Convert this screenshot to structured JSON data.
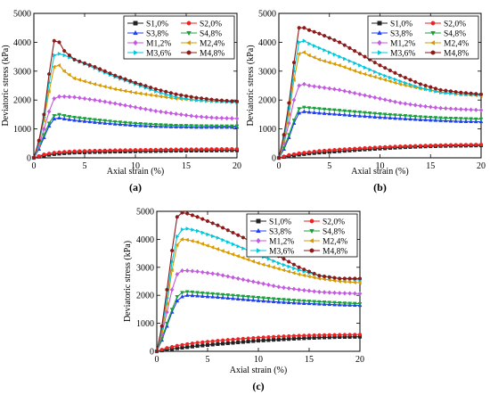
{
  "figure": {
    "colors": {
      "S1": "#222222",
      "S2": "#ee2222",
      "S3": "#1f3ff0",
      "S4": "#18a03a",
      "M1": "#c45ae0",
      "M2": "#d79a00",
      "M3": "#00c8dc",
      "M4": "#8b1a1a"
    },
    "markers": {
      "S1": "square",
      "S2": "circle",
      "S3": "triangle-up",
      "S4": "triangle-down",
      "M1": "diamond",
      "M2": "triangle-left",
      "M3": "triangle-right",
      "M4": "hexagon"
    }
  },
  "chart_data": [
    {
      "type": "line",
      "panel_label": "(a)",
      "xlabel": "Axial strain (%)",
      "ylabel": "Deviatoric stress (kPa)",
      "xlim": [
        0,
        20
      ],
      "ylim": [
        0,
        5000
      ],
      "xticks": [
        "0",
        "5",
        "10",
        "15",
        "20"
      ],
      "yticks": [
        "0",
        "1000",
        "2000",
        "3000",
        "4000",
        "5000"
      ],
      "legend_position": "top-right",
      "series": [
        {
          "name": "S1,0%",
          "key": "S1",
          "x": [
            0,
            1,
            2,
            3,
            4,
            6,
            8,
            10,
            12,
            14,
            16,
            18,
            20
          ],
          "y": [
            0,
            80,
            130,
            160,
            180,
            200,
            215,
            225,
            235,
            245,
            250,
            255,
            260
          ]
        },
        {
          "name": "S2,0%",
          "key": "S2",
          "x": [
            0,
            1,
            2,
            3,
            4,
            6,
            8,
            10,
            12,
            14,
            16,
            18,
            20
          ],
          "y": [
            0,
            120,
            180,
            210,
            230,
            250,
            265,
            275,
            285,
            295,
            300,
            305,
            310
          ]
        },
        {
          "name": "S3,8%",
          "key": "S3",
          "x": [
            0,
            0.5,
            1,
            1.5,
            2,
            2.5,
            3,
            4,
            6,
            8,
            10,
            12,
            14,
            16,
            18,
            20
          ],
          "y": [
            0,
            300,
            700,
            1100,
            1350,
            1380,
            1350,
            1300,
            1230,
            1170,
            1120,
            1090,
            1070,
            1060,
            1060,
            1060
          ]
        },
        {
          "name": "S4,8%",
          "key": "S4",
          "x": [
            0,
            0.5,
            1,
            1.5,
            2,
            2.5,
            3,
            4,
            6,
            8,
            10,
            12,
            14,
            16,
            18,
            20
          ],
          "y": [
            0,
            350,
            800,
            1200,
            1460,
            1500,
            1460,
            1400,
            1320,
            1250,
            1190,
            1150,
            1120,
            1110,
            1100,
            1100
          ]
        },
        {
          "name": "M1,2%",
          "key": "M1",
          "x": [
            0,
            0.5,
            1,
            1.5,
            2,
            2.5,
            3,
            4,
            6,
            8,
            10,
            12,
            14,
            16,
            18,
            20
          ],
          "y": [
            0,
            400,
            1000,
            1600,
            2050,
            2120,
            2120,
            2100,
            2000,
            1880,
            1750,
            1620,
            1520,
            1430,
            1380,
            1360
          ]
        },
        {
          "name": "M2,4%",
          "key": "M2",
          "x": [
            0,
            0.5,
            1,
            1.5,
            2,
            2.5,
            3,
            4,
            6,
            8,
            10,
            12,
            14,
            16,
            18,
            20
          ],
          "y": [
            0,
            500,
            1300,
            2300,
            3150,
            3200,
            3000,
            2750,
            2550,
            2380,
            2250,
            2150,
            2050,
            2000,
            1960,
            1940
          ]
        },
        {
          "name": "M3,6%",
          "key": "M3",
          "x": [
            0,
            0.5,
            1,
            1.5,
            2,
            2.5,
            3,
            4,
            6,
            8,
            10,
            12,
            14,
            16,
            18,
            20
          ],
          "y": [
            0,
            500,
            1400,
            2600,
            3550,
            3600,
            3550,
            3400,
            3100,
            2800,
            2550,
            2300,
            2100,
            1990,
            1950,
            1920
          ]
        },
        {
          "name": "M4,8%",
          "key": "M4",
          "x": [
            0,
            0.5,
            1,
            1.5,
            2,
            2.5,
            3,
            4,
            6,
            8,
            10,
            12,
            14,
            16,
            18,
            20
          ],
          "y": [
            0,
            600,
            1500,
            2900,
            4050,
            4000,
            3700,
            3400,
            3150,
            2850,
            2600,
            2380,
            2200,
            2080,
            2000,
            1950
          ]
        }
      ]
    },
    {
      "type": "line",
      "panel_label": "(b)",
      "xlabel": "Axial strain (%)",
      "ylabel": "Deviatoric stress (kPa)",
      "xlim": [
        0,
        20
      ],
      "ylim": [
        0,
        5000
      ],
      "xticks": [
        "0",
        "5",
        "10",
        "15",
        "20"
      ],
      "yticks": [
        "0",
        "1000",
        "2000",
        "3000",
        "4000",
        "5000"
      ],
      "legend_position": "top-right",
      "series": [
        {
          "name": "S1,0%",
          "key": "S1",
          "x": [
            0,
            1,
            2,
            3,
            4,
            6,
            8,
            10,
            12,
            14,
            16,
            18,
            20
          ],
          "y": [
            0,
            60,
            110,
            150,
            180,
            230,
            280,
            320,
            360,
            390,
            410,
            420,
            430
          ]
        },
        {
          "name": "S2,0%",
          "key": "S2",
          "x": [
            0,
            1,
            2,
            3,
            4,
            6,
            8,
            10,
            12,
            14,
            16,
            18,
            20
          ],
          "y": [
            0,
            100,
            160,
            200,
            240,
            290,
            330,
            370,
            400,
            420,
            440,
            450,
            460
          ]
        },
        {
          "name": "S3,8%",
          "key": "S3",
          "x": [
            0,
            0.5,
            1,
            1.5,
            2,
            2.5,
            3,
            4,
            6,
            8,
            10,
            12,
            14,
            16,
            18,
            20
          ],
          "y": [
            0,
            300,
            700,
            1200,
            1550,
            1600,
            1580,
            1550,
            1500,
            1450,
            1400,
            1360,
            1320,
            1290,
            1260,
            1250
          ]
        },
        {
          "name": "S4,8%",
          "key": "S4",
          "x": [
            0,
            0.5,
            1,
            1.5,
            2,
            2.5,
            3,
            4,
            6,
            8,
            10,
            12,
            14,
            16,
            18,
            20
          ],
          "y": [
            0,
            350,
            800,
            1300,
            1700,
            1750,
            1730,
            1700,
            1640,
            1580,
            1520,
            1470,
            1420,
            1380,
            1360,
            1340
          ]
        },
        {
          "name": "M1,2%",
          "key": "M1",
          "x": [
            0,
            0.5,
            1,
            1.5,
            2,
            2.5,
            3,
            4,
            6,
            8,
            10,
            12,
            14,
            16,
            18,
            20
          ],
          "y": [
            0,
            500,
            1200,
            2000,
            2500,
            2550,
            2500,
            2450,
            2350,
            2200,
            2050,
            1900,
            1800,
            1720,
            1680,
            1650
          ]
        },
        {
          "name": "M2,4%",
          "key": "M2",
          "x": [
            0,
            0.5,
            1,
            1.5,
            2,
            2.5,
            3,
            4,
            6,
            8,
            10,
            12,
            14,
            16,
            18,
            20
          ],
          "y": [
            0,
            600,
            1500,
            2700,
            3600,
            3650,
            3550,
            3400,
            3200,
            2950,
            2750,
            2550,
            2400,
            2280,
            2200,
            2150
          ]
        },
        {
          "name": "M3,6%",
          "key": "M3",
          "x": [
            0,
            0.5,
            1,
            1.5,
            2,
            2.5,
            3,
            4,
            6,
            8,
            10,
            12,
            14,
            16,
            18,
            20
          ],
          "y": [
            0,
            700,
            1700,
            3000,
            4000,
            4050,
            3950,
            3800,
            3500,
            3200,
            2900,
            2650,
            2420,
            2260,
            2200,
            2180
          ]
        },
        {
          "name": "M4,8%",
          "key": "M4",
          "x": [
            0,
            0.5,
            1,
            1.5,
            2,
            2.5,
            3,
            4,
            6,
            8,
            10,
            12,
            14,
            16,
            18,
            20
          ],
          "y": [
            0,
            800,
            1900,
            3300,
            4500,
            4500,
            4420,
            4300,
            4000,
            3600,
            3200,
            2850,
            2550,
            2350,
            2260,
            2200
          ]
        }
      ]
    },
    {
      "type": "line",
      "panel_label": "(c)",
      "xlabel": "Axial strain (%)",
      "ylabel": "Deviatoric stress (kPa)",
      "xlim": [
        0,
        20
      ],
      "ylim": [
        0,
        5000
      ],
      "xticks": [
        "0",
        "5",
        "10",
        "15",
        "20"
      ],
      "yticks": [
        "0",
        "1000",
        "2000",
        "3000",
        "4000",
        "5000"
      ],
      "legend_position": "top-right",
      "series": [
        {
          "name": "S1,0%",
          "key": "S1",
          "x": [
            0,
            1,
            2,
            3,
            4,
            6,
            8,
            10,
            12,
            14,
            16,
            18,
            20
          ],
          "y": [
            0,
            60,
            110,
            150,
            190,
            260,
            320,
            380,
            420,
            460,
            490,
            510,
            520
          ]
        },
        {
          "name": "S2,0%",
          "key": "S2",
          "x": [
            0,
            1,
            2,
            3,
            4,
            6,
            8,
            10,
            12,
            14,
            16,
            18,
            20
          ],
          "y": [
            0,
            120,
            200,
            260,
            310,
            380,
            440,
            490,
            530,
            560,
            580,
            590,
            600
          ]
        },
        {
          "name": "S3,8%",
          "key": "S3",
          "x": [
            0,
            0.5,
            1,
            1.5,
            2,
            2.5,
            3,
            4,
            6,
            8,
            10,
            12,
            14,
            16,
            18,
            20
          ],
          "y": [
            0,
            400,
            900,
            1400,
            1800,
            1950,
            2000,
            1980,
            1930,
            1870,
            1810,
            1760,
            1720,
            1690,
            1660,
            1640
          ]
        },
        {
          "name": "S4,8%",
          "key": "S4",
          "x": [
            0,
            0.5,
            1,
            1.5,
            2,
            2.5,
            3,
            4,
            6,
            8,
            10,
            12,
            14,
            16,
            18,
            20
          ],
          "y": [
            0,
            450,
            1000,
            1500,
            1950,
            2100,
            2130,
            2100,
            2040,
            1980,
            1920,
            1860,
            1810,
            1770,
            1730,
            1700
          ]
        },
        {
          "name": "M1,2%",
          "key": "M1",
          "x": [
            0,
            0.5,
            1,
            1.5,
            2,
            2.5,
            3,
            4,
            6,
            8,
            10,
            12,
            14,
            16,
            18,
            20
          ],
          "y": [
            0,
            600,
            1400,
            2200,
            2750,
            2880,
            2880,
            2850,
            2750,
            2600,
            2450,
            2300,
            2200,
            2120,
            2080,
            2060
          ]
        },
        {
          "name": "M2,4%",
          "key": "M2",
          "x": [
            0,
            0.5,
            1,
            1.5,
            2,
            2.5,
            3,
            4,
            6,
            8,
            10,
            12,
            14,
            16,
            18,
            20
          ],
          "y": [
            0,
            700,
            1700,
            2900,
            3800,
            4000,
            3980,
            3900,
            3650,
            3400,
            3150,
            2950,
            2750,
            2600,
            2500,
            2450
          ]
        },
        {
          "name": "M3,6%",
          "key": "M3",
          "x": [
            0,
            0.5,
            1,
            1.5,
            2,
            2.5,
            3,
            4,
            6,
            8,
            10,
            12,
            14,
            16,
            18,
            20
          ],
          "y": [
            0,
            800,
            1900,
            3200,
            4100,
            4350,
            4380,
            4300,
            4050,
            3750,
            3450,
            3150,
            2900,
            2700,
            2600,
            2550
          ]
        },
        {
          "name": "M4,8%",
          "key": "M4",
          "x": [
            0,
            0.5,
            1,
            1.5,
            2,
            2.5,
            3,
            4,
            6,
            8,
            10,
            12,
            14,
            16,
            18,
            20
          ],
          "y": [
            0,
            900,
            2200,
            3600,
            4800,
            4950,
            4920,
            4800,
            4500,
            4150,
            3800,
            3400,
            3000,
            2700,
            2600,
            2600
          ]
        }
      ]
    }
  ]
}
